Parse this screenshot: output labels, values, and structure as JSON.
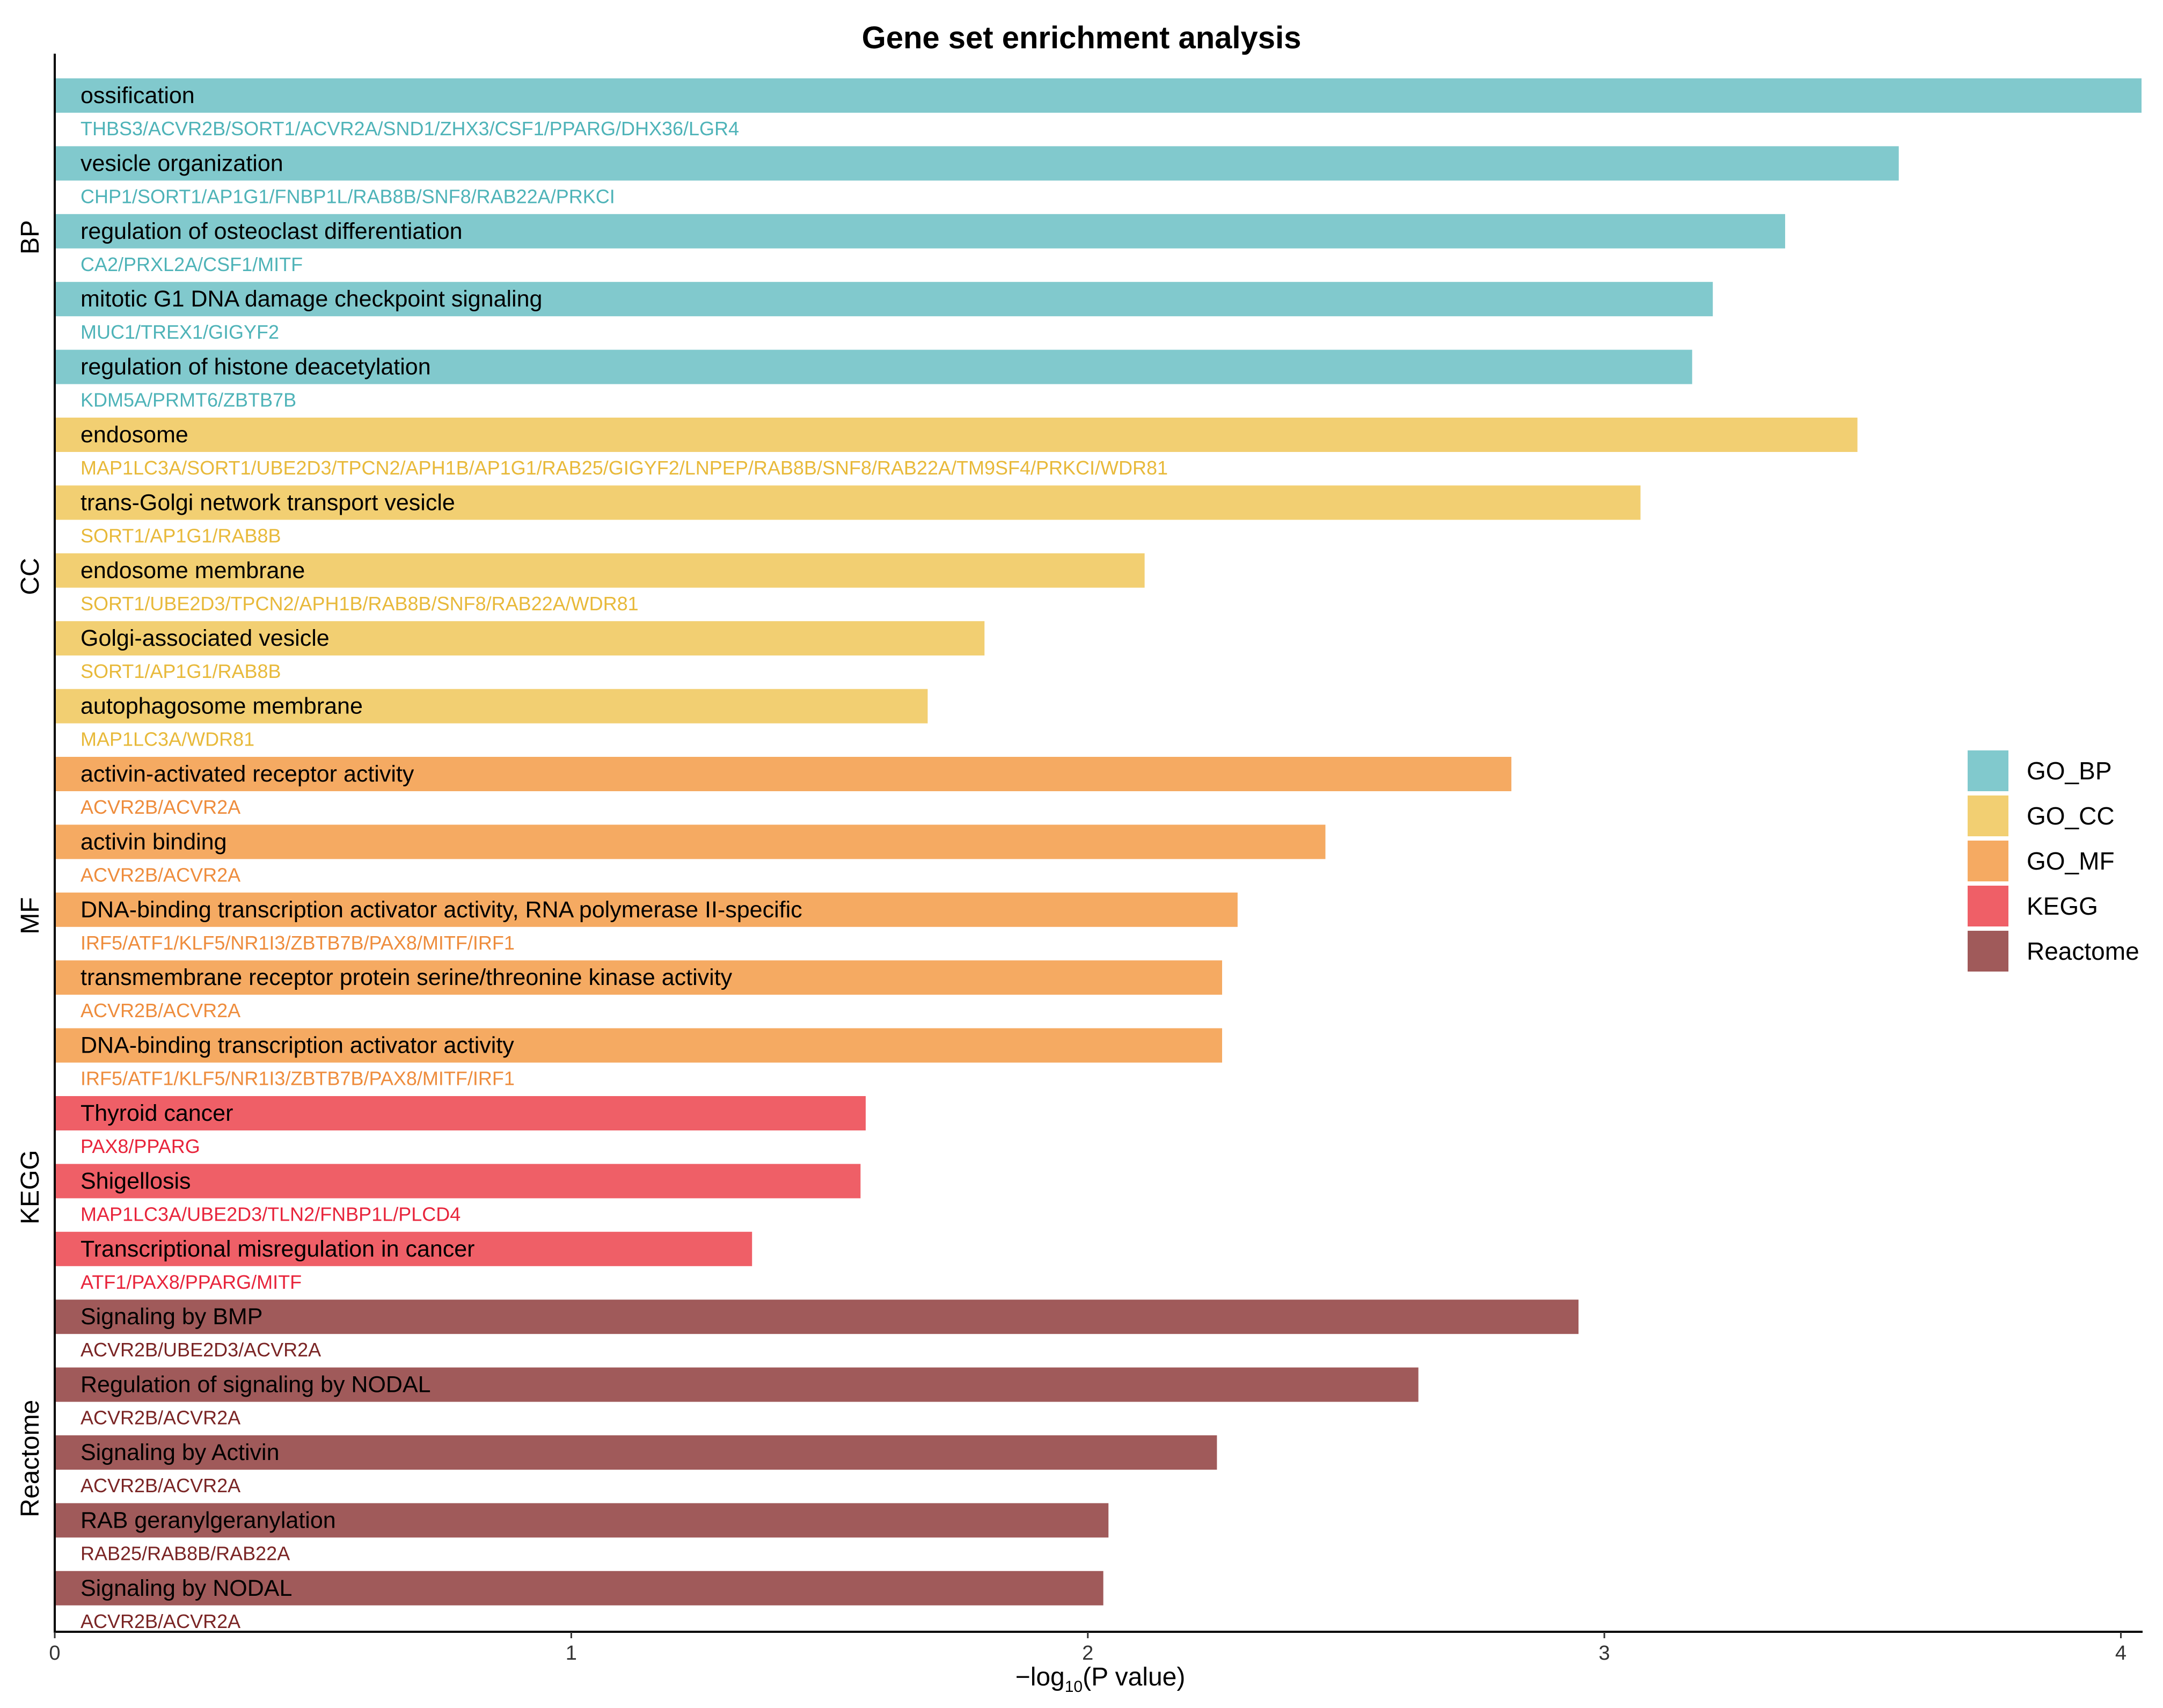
{
  "chart_data": {
    "type": "bar",
    "orientation": "horizontal",
    "title": "Gene set enrichment analysis",
    "xlabel_main": "−log",
    "xlabel_sub": "10",
    "xlabel_tail": "(P value)",
    "xlim": [
      0,
      4.04
    ],
    "xticks": [
      "0",
      "1",
      "2",
      "3",
      "4"
    ],
    "groups": [
      "BP",
      "CC",
      "MF",
      "KEGG",
      "Reactome"
    ],
    "legend": [
      {
        "label": "GO_BP",
        "color": "#81c9cd"
      },
      {
        "label": "GO_CC",
        "color": "#f2cf72"
      },
      {
        "label": "GO_MF",
        "color": "#f5aa62"
      },
      {
        "label": "KEGG",
        "color": "#ef5f67"
      },
      {
        "label": "Reactome",
        "color": "#a05a5a"
      }
    ],
    "bars": [
      {
        "term": "ossification",
        "genes": "THBS3/ACVR2B/SORT1/ACVR2A/SND1/ZHX3/CSF1/PPARG/DHX36/LGR4",
        "value": 4.04,
        "category": "GO_BP",
        "group": "BP"
      },
      {
        "term": "vesicle organization",
        "genes": "CHP1/SORT1/AP1G1/FNBP1L/RAB8B/SNF8/RAB22A/PRKCI",
        "value": 3.57,
        "category": "GO_BP",
        "group": "BP"
      },
      {
        "term": "regulation of osteoclast differentiation",
        "genes": "CA2/PRXL2A/CSF1/MITF",
        "value": 3.35,
        "category": "GO_BP",
        "group": "BP"
      },
      {
        "term": "mitotic G1 DNA damage checkpoint signaling",
        "genes": "MUC1/TREX1/GIGYF2",
        "value": 3.21,
        "category": "GO_BP",
        "group": "BP"
      },
      {
        "term": "regulation of histone deacetylation",
        "genes": "KDM5A/PRMT6/ZBTB7B",
        "value": 3.17,
        "category": "GO_BP",
        "group": "BP"
      },
      {
        "term": "endosome",
        "genes": "MAP1LC3A/SORT1/UBE2D3/TPCN2/APH1B/AP1G1/RAB25/GIGYF2/LNPEP/RAB8B/SNF8/RAB22A/TM9SF4/PRKCI/WDR81",
        "value": 3.49,
        "category": "GO_CC",
        "group": "CC"
      },
      {
        "term": "trans-Golgi network transport vesicle",
        "genes": "SORT1/AP1G1/RAB8B",
        "value": 3.07,
        "category": "GO_CC",
        "group": "CC"
      },
      {
        "term": "endosome membrane",
        "genes": "SORT1/UBE2D3/TPCN2/APH1B/RAB8B/SNF8/RAB22A/WDR81",
        "value": 2.11,
        "category": "GO_CC",
        "group": "CC"
      },
      {
        "term": "Golgi-associated vesicle",
        "genes": "SORT1/AP1G1/RAB8B",
        "value": 1.8,
        "category": "GO_CC",
        "group": "CC"
      },
      {
        "term": "autophagosome membrane",
        "genes": "MAP1LC3A/WDR81",
        "value": 1.69,
        "category": "GO_CC",
        "group": "CC"
      },
      {
        "term": "activin-activated receptor activity",
        "genes": "ACVR2B/ACVR2A",
        "value": 2.82,
        "category": "GO_MF",
        "group": "MF"
      },
      {
        "term": "activin binding",
        "genes": "ACVR2B/ACVR2A",
        "value": 2.46,
        "category": "GO_MF",
        "group": "MF"
      },
      {
        "term": "DNA-binding transcription activator activity, RNA polymerase II-specific",
        "genes": "IRF5/ATF1/KLF5/NR1I3/ZBTB7B/PAX8/MITF/IRF1",
        "value": 2.29,
        "category": "GO_MF",
        "group": "MF"
      },
      {
        "term": "transmembrane receptor protein serine/threonine kinase activity",
        "genes": "ACVR2B/ACVR2A",
        "value": 2.26,
        "category": "GO_MF",
        "group": "MF"
      },
      {
        "term": "DNA-binding transcription activator activity",
        "genes": "IRF5/ATF1/KLF5/NR1I3/ZBTB7B/PAX8/MITF/IRF1",
        "value": 2.26,
        "category": "GO_MF",
        "group": "MF"
      },
      {
        "term": "Thyroid cancer",
        "genes": "PAX8/PPARG",
        "value": 1.57,
        "category": "KEGG",
        "group": "KEGG"
      },
      {
        "term": "Shigellosis",
        "genes": "MAP1LC3A/UBE2D3/TLN2/FNBP1L/PLCD4",
        "value": 1.56,
        "category": "KEGG",
        "group": "KEGG"
      },
      {
        "term": "Transcriptional misregulation in cancer",
        "genes": "ATF1/PAX8/PPARG/MITF",
        "value": 1.35,
        "category": "KEGG",
        "group": "KEGG"
      },
      {
        "term": "Signaling by BMP",
        "genes": "ACVR2B/UBE2D3/ACVR2A",
        "value": 2.95,
        "category": "Reactome",
        "group": "Reactome"
      },
      {
        "term": "Regulation of signaling by NODAL",
        "genes": "ACVR2B/ACVR2A",
        "value": 2.64,
        "category": "Reactome",
        "group": "Reactome"
      },
      {
        "term": "Signaling by Activin",
        "genes": "ACVR2B/ACVR2A",
        "value": 2.25,
        "category": "Reactome",
        "group": "Reactome"
      },
      {
        "term": "RAB geranylgeranylation",
        "genes": "RAB25/RAB8B/RAB22A",
        "value": 2.04,
        "category": "Reactome",
        "group": "Reactome"
      },
      {
        "term": "Signaling by NODAL",
        "genes": "ACVR2B/ACVR2A",
        "value": 2.03,
        "category": "Reactome",
        "group": "Reactome"
      }
    ],
    "gene_text_colors": {
      "GO_BP": "#4eb3b8",
      "GO_CC": "#e8b93a",
      "GO_MF": "#ee8c3c",
      "KEGG": "#e8243b",
      "Reactome": "#7a2424"
    }
  }
}
